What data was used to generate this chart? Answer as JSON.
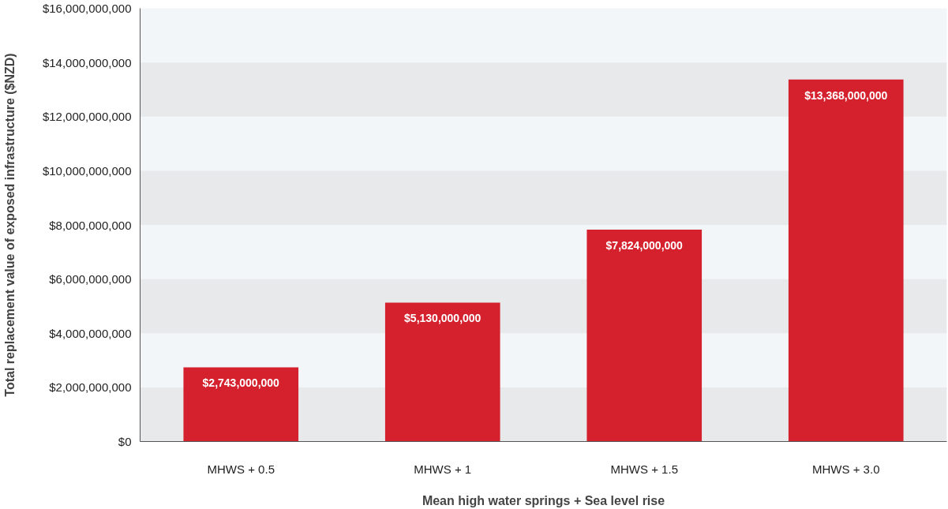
{
  "chart_data": {
    "type": "bar",
    "xlabel": "Mean high water springs + Sea level rise",
    "ylabel": "Total replacement value of exposed infrastructure ($NZD)",
    "categories": [
      "MHWS + 0.5",
      "MHWS + 1",
      "MHWS + 1.5",
      "MHWS + 3.0"
    ],
    "values": [
      2743000000,
      5130000000,
      7824000000,
      13368000000
    ],
    "color": "#d4212d",
    "ylim": [
      0,
      16000000000
    ],
    "yticks": [
      {
        "value": 0,
        "label": "$0"
      },
      {
        "value": 2000000000,
        "label": "$2,000,000,000"
      },
      {
        "value": 4000000000,
        "label": "$4,000,000,000"
      },
      {
        "value": 6000000000,
        "label": "$6,000,000,000"
      },
      {
        "value": 8000000000,
        "label": "$8,000,000,000"
      },
      {
        "value": 10000000000,
        "label": "$10,000,000,000"
      },
      {
        "value": 12000000000,
        "label": "$12,000,000,000"
      },
      {
        "value": 14000000000,
        "label": "$14,000,000,000"
      },
      {
        "value": 16000000000,
        "label": "$16,000,000,000"
      }
    ],
    "value_labels": [
      "$2,743,000,000",
      "$5,130,000,000",
      "$7,824,000,000",
      "$13,368,000,000"
    ],
    "bands": [
      {
        "axis": "y",
        "from": 0,
        "to": 2000000000,
        "color": "#e8e9eb"
      },
      {
        "axis": "y",
        "from": 4000000000,
        "to": 6000000000,
        "color": "#e8e9eb"
      },
      {
        "axis": "y",
        "from": 8000000000,
        "to": 10000000000,
        "color": "#e8e9eb"
      },
      {
        "axis": "y",
        "from": 12000000000,
        "to": 14000000000,
        "color": "#e8e9eb"
      }
    ]
  }
}
